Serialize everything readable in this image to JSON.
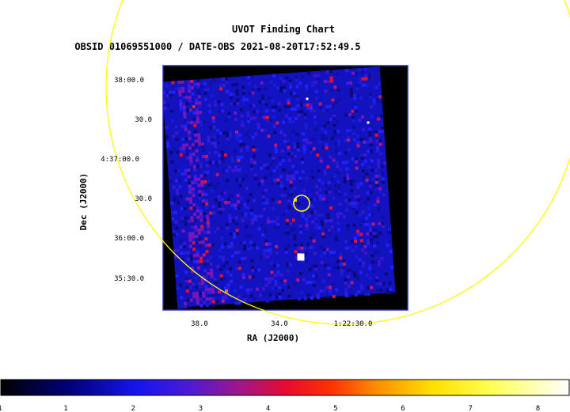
{
  "chart_data": {
    "type": "heatmap",
    "title": "UVOT Finding Chart",
    "subtitle": "OBSID 01069551000 / DATE-OBS 2021-08-20T17:52:49.5",
    "xlabel": "RA (J2000)",
    "ylabel": "Dec (J2000)",
    "x_ticks": [
      "38.0",
      "34.0",
      "1:22:30.0"
    ],
    "y_ticks": [
      "38:00.0",
      "30.0",
      "4:37:00.0",
      "30.0",
      "36:00.0",
      "35:30.0"
    ],
    "colorbar": {
      "ticks": [
        "1",
        "2",
        "3",
        "4",
        "5",
        "6",
        "7",
        "8"
      ],
      "edge_label": "1"
    },
    "colors": {
      "background": "#ffffff",
      "image_bg": "#000000",
      "frame": "#2a2ac8",
      "region": "#ffff00",
      "text": "#000000"
    }
  }
}
